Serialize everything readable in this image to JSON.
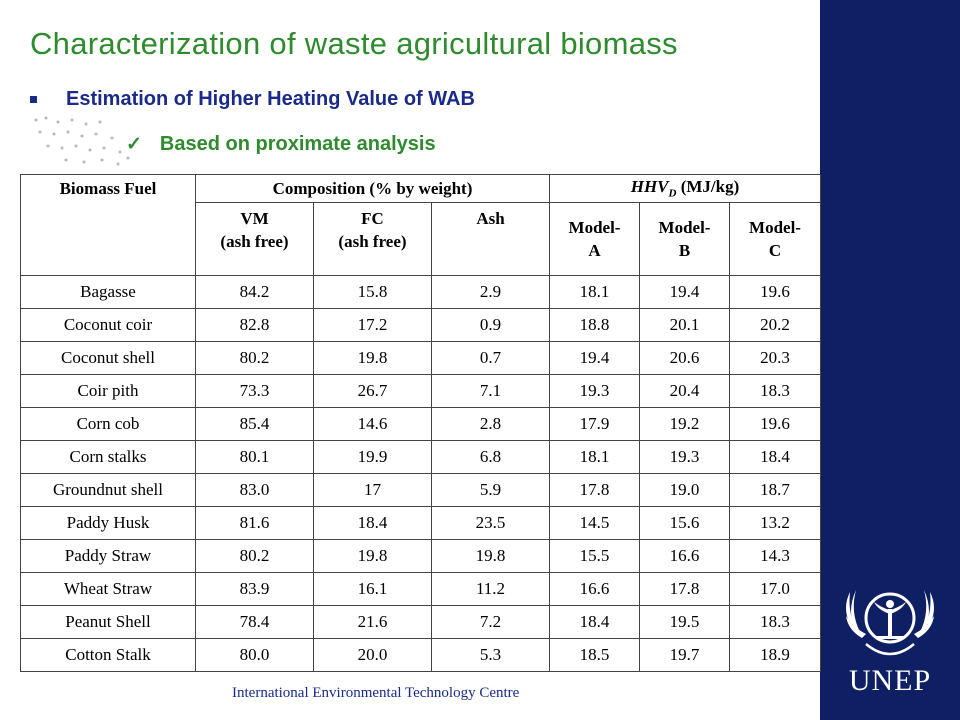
{
  "title": "Characterization of waste agricultural biomass",
  "bullets": {
    "level1": "Estimation of Higher Heating Value of WAB",
    "level2": "Based on proximate analysis"
  },
  "table": {
    "header": {
      "biomass_fuel": "Biomass Fuel",
      "composition": "Composition (% by weight)",
      "hhv_main": "HHV",
      "hhv_sub": "D",
      "hhv_unit": " (MJ/kg)",
      "vm": [
        "VM",
        "(ash free)"
      ],
      "fc": [
        "FC",
        "(ash free)"
      ],
      "ash": "Ash",
      "model_a": [
        "Model-",
        "A"
      ],
      "model_b": [
        "Model-",
        "B"
      ],
      "model_c": [
        "Model-",
        "C"
      ]
    },
    "rows": [
      {
        "name": "Bagasse",
        "vm": "84.2",
        "fc": "15.8",
        "ash": "2.9",
        "a": "18.1",
        "b": "19.4",
        "c": "19.6"
      },
      {
        "name": "Coconut coir",
        "vm": "82.8",
        "fc": "17.2",
        "ash": "0.9",
        "a": "18.8",
        "b": "20.1",
        "c": "20.2"
      },
      {
        "name": "Coconut shell",
        "vm": "80.2",
        "fc": "19.8",
        "ash": "0.7",
        "a": "19.4",
        "b": "20.6",
        "c": "20.3"
      },
      {
        "name": "Coir pith",
        "vm": "73.3",
        "fc": "26.7",
        "ash": "7.1",
        "a": "19.3",
        "b": "20.4",
        "c": "18.3"
      },
      {
        "name": "Corn cob",
        "vm": "85.4",
        "fc": "14.6",
        "ash": "2.8",
        "a": "17.9",
        "b": "19.2",
        "c": "19.6"
      },
      {
        "name": "Corn stalks",
        "vm": "80.1",
        "fc": "19.9",
        "ash": "6.8",
        "a": "18.1",
        "b": "19.3",
        "c": "18.4"
      },
      {
        "name": "Groundnut shell",
        "vm": "83.0",
        "fc": "17",
        "ash": "5.9",
        "a": "17.8",
        "b": "19.0",
        "c": "18.7"
      },
      {
        "name": "Paddy Husk",
        "vm": "81.6",
        "fc": "18.4",
        "ash": "23.5",
        "a": "14.5",
        "b": "15.6",
        "c": "13.2"
      },
      {
        "name": "Paddy Straw",
        "vm": "80.2",
        "fc": "19.8",
        "ash": "19.8",
        "a": "15.5",
        "b": "16.6",
        "c": "14.3"
      },
      {
        "name": "Wheat Straw",
        "vm": "83.9",
        "fc": "16.1",
        "ash": "11.2",
        "a": "16.6",
        "b": "17.8",
        "c": "17.0"
      },
      {
        "name": "Peanut Shell",
        "vm": "78.4",
        "fc": "21.6",
        "ash": "7.2",
        "a": "18.4",
        "b": "19.5",
        "c": "18.3"
      },
      {
        "name": "Cotton Stalk",
        "vm": "80.0",
        "fc": "20.0",
        "ash": "5.3",
        "a": "18.5",
        "b": "19.7",
        "c": "18.9"
      }
    ]
  },
  "footer": "International Environmental Technology Centre",
  "logo": {
    "text": "UNEP",
    "icon": "un-environment-emblem-icon"
  },
  "colors": {
    "title": "#2e8b2e",
    "bullet": "#1a2a8a",
    "band": "#0f1f64"
  }
}
